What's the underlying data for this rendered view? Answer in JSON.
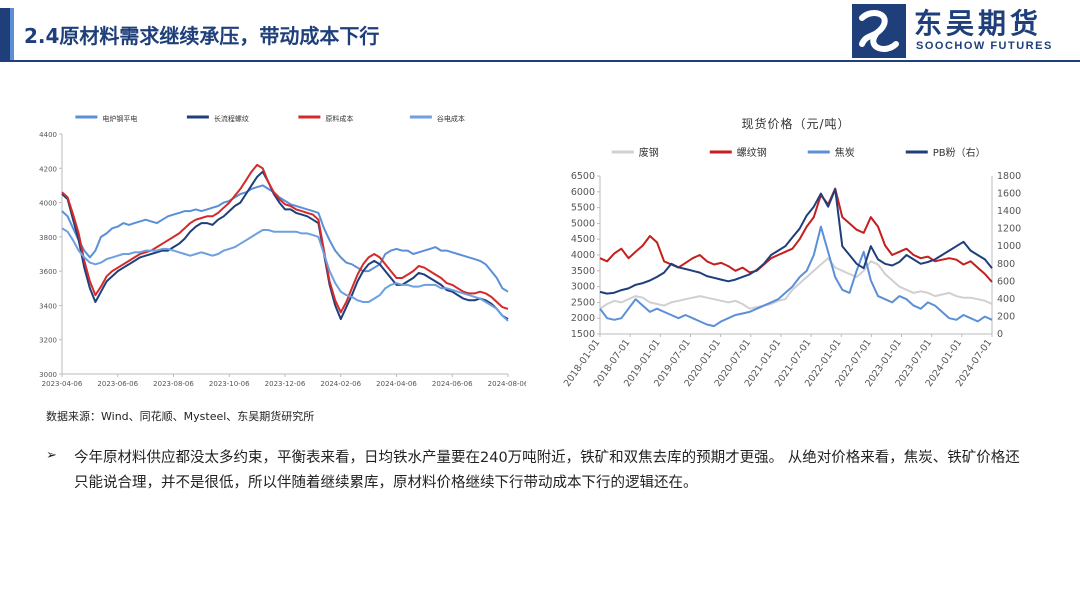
{
  "header": {
    "title": "2.4原材料需求继续承压，带动成本下行",
    "logo_cn": "东吴期货",
    "logo_en": "SOOCHOW FUTURES"
  },
  "source_note": "数据来源：Wind、同花顺、Mysteel、东吴期货研究所",
  "bullet": {
    "mark": "➢",
    "text": "今年原材料供应都没太多约束，平衡表来看，日均铁水产量要在240万吨附近，铁矿和双焦去库的预期才更强。 从绝对价格来看，焦炭、铁矿价格还只能说合理，并不是很低，所以伴随着继续累库，原材料价格继续下行带动成本下行的逻辑还在。"
  },
  "colors": {
    "brand": "#1f3f7a",
    "accent": "#5c8fd6"
  },
  "chart_data": [
    {
      "type": "line",
      "title": "",
      "xlabel": "",
      "ylabel": "",
      "ylim": [
        3000,
        4400
      ],
      "yticks": [
        3000,
        3200,
        3400,
        3600,
        3800,
        4000,
        4200,
        4400
      ],
      "xticks": [
        "2023-04-06",
        "2023-06-06",
        "2023-08-06",
        "2023-10-06",
        "2023-12-06",
        "2024-02-06",
        "2024-04-06",
        "2024-06-06",
        "2024-08-06"
      ],
      "legend": "top",
      "x": [
        0,
        1,
        2,
        3,
        4,
        5,
        6,
        7,
        8,
        9,
        10,
        11,
        12,
        13,
        14,
        15,
        16,
        17,
        18,
        19,
        20,
        21,
        22,
        23,
        24,
        25,
        26,
        27,
        28,
        29,
        30,
        31,
        32,
        33,
        34,
        35,
        36,
        37,
        38,
        39,
        40,
        41,
        42,
        43,
        44,
        45,
        46,
        47,
        48,
        49,
        50,
        51,
        52,
        53,
        54,
        55,
        56,
        57,
        58,
        59,
        60,
        61,
        62,
        63,
        64,
        65,
        66,
        67,
        68,
        69,
        70,
        71,
        72,
        73,
        74,
        75,
        76,
        77,
        78,
        79,
        80
      ],
      "series": [
        {
          "name": "电炉钢平电",
          "color": "#5b8fd8",
          "values": [
            3950,
            3920,
            3850,
            3780,
            3720,
            3680,
            3720,
            3800,
            3820,
            3850,
            3860,
            3880,
            3870,
            3880,
            3890,
            3900,
            3890,
            3880,
            3900,
            3920,
            3930,
            3940,
            3950,
            3950,
            3960,
            3950,
            3960,
            3970,
            3980,
            4000,
            4010,
            4030,
            4050,
            4060,
            4080,
            4090,
            4100,
            4080,
            4060,
            4030,
            4010,
            3990,
            3980,
            3970,
            3960,
            3950,
            3940,
            3850,
            3780,
            3720,
            3680,
            3650,
            3640,
            3620,
            3600,
            3600,
            3620,
            3640,
            3700,
            3720,
            3730,
            3720,
            3720,
            3700,
            3710,
            3720,
            3730,
            3740,
            3720,
            3720,
            3710,
            3700,
            3690,
            3680,
            3670,
            3660,
            3640,
            3600,
            3560,
            3500,
            3480
          ]
        },
        {
          "name": "长流程螺纹",
          "color": "#1f3f7a",
          "values": [
            4050,
            4020,
            3900,
            3780,
            3620,
            3500,
            3420,
            3480,
            3540,
            3570,
            3600,
            3620,
            3640,
            3660,
            3680,
            3690,
            3700,
            3710,
            3720,
            3720,
            3740,
            3760,
            3790,
            3830,
            3860,
            3880,
            3880,
            3870,
            3900,
            3920,
            3950,
            3980,
            4000,
            4050,
            4100,
            4150,
            4180,
            4120,
            4050,
            4000,
            3960,
            3960,
            3940,
            3930,
            3920,
            3900,
            3880,
            3700,
            3520,
            3400,
            3320,
            3390,
            3460,
            3540,
            3600,
            3640,
            3660,
            3640,
            3600,
            3560,
            3520,
            3520,
            3540,
            3560,
            3590,
            3580,
            3560,
            3540,
            3520,
            3490,
            3480,
            3460,
            3440,
            3430,
            3430,
            3440,
            3430,
            3410,
            3380,
            3340,
            3320
          ]
        },
        {
          "name": "原料成本",
          "color": "#d42a2a",
          "values": [
            4060,
            4030,
            3930,
            3820,
            3660,
            3540,
            3460,
            3510,
            3570,
            3600,
            3620,
            3640,
            3660,
            3680,
            3700,
            3710,
            3720,
            3740,
            3760,
            3780,
            3800,
            3820,
            3850,
            3880,
            3900,
            3910,
            3920,
            3920,
            3940,
            3970,
            4000,
            4040,
            4080,
            4130,
            4180,
            4220,
            4200,
            4120,
            4060,
            4020,
            3990,
            3980,
            3960,
            3950,
            3940,
            3930,
            3900,
            3720,
            3540,
            3430,
            3360,
            3420,
            3500,
            3580,
            3640,
            3680,
            3700,
            3680,
            3640,
            3600,
            3560,
            3560,
            3580,
            3600,
            3630,
            3620,
            3600,
            3580,
            3560,
            3530,
            3520,
            3500,
            3480,
            3470,
            3470,
            3480,
            3470,
            3450,
            3420,
            3390,
            3380
          ]
        },
        {
          "name": "谷电成本",
          "color": "#6e9fe0",
          "values": [
            3850,
            3830,
            3780,
            3720,
            3680,
            3650,
            3640,
            3650,
            3670,
            3680,
            3690,
            3700,
            3700,
            3710,
            3710,
            3720,
            3720,
            3720,
            3730,
            3730,
            3720,
            3710,
            3700,
            3690,
            3700,
            3710,
            3700,
            3690,
            3700,
            3720,
            3730,
            3740,
            3760,
            3780,
            3800,
            3820,
            3840,
            3840,
            3830,
            3830,
            3830,
            3830,
            3830,
            3820,
            3820,
            3810,
            3800,
            3700,
            3600,
            3530,
            3480,
            3460,
            3450,
            3430,
            3420,
            3420,
            3440,
            3460,
            3500,
            3520,
            3530,
            3520,
            3520,
            3510,
            3510,
            3520,
            3520,
            3520,
            3500,
            3500,
            3490,
            3480,
            3470,
            3460,
            3450,
            3440,
            3420,
            3400,
            3380,
            3340,
            3310
          ]
        }
      ]
    },
    {
      "type": "line",
      "title": "现货价格（元/吨）",
      "xlabel": "",
      "ylabel": "",
      "ylim": [
        1500,
        6500
      ],
      "yticks": [
        1500,
        2000,
        2500,
        3000,
        3500,
        4000,
        4500,
        5000,
        5500,
        6000,
        6500
      ],
      "y2lim": [
        0,
        1800
      ],
      "y2ticks": [
        0,
        200,
        400,
        600,
        800,
        1000,
        1200,
        1400,
        1600,
        1800
      ],
      "xticks": [
        "2018-01-01",
        "2018-07-01",
        "2019-01-01",
        "2019-07-01",
        "2020-01-01",
        "2020-07-01",
        "2021-01-01",
        "2021-07-01",
        "2022-01-01",
        "2022-07-01",
        "2023-01-01",
        "2023-07-01",
        "2024-01-01",
        "2024-07-01"
      ],
      "legend": "top",
      "x": [
        0,
        1,
        2,
        3,
        4,
        5,
        6,
        7,
        8,
        9,
        10,
        11,
        12,
        13,
        14,
        15,
        16,
        17,
        18,
        19,
        20,
        21,
        22,
        23,
        24,
        25,
        26,
        27,
        28,
        29,
        30,
        31,
        32,
        33,
        34,
        35,
        36,
        37,
        38,
        39,
        40,
        41,
        42,
        43,
        44,
        45,
        46,
        47,
        48,
        49,
        50,
        51,
        52,
        53,
        54,
        55
      ],
      "series": [
        {
          "name": "废钢",
          "color": "#d0d0d0",
          "axis": "left",
          "values": [
            2300,
            2450,
            2550,
            2500,
            2600,
            2700,
            2650,
            2500,
            2450,
            2400,
            2500,
            2550,
            2600,
            2650,
            2700,
            2650,
            2600,
            2550,
            2500,
            2550,
            2450,
            2300,
            2350,
            2400,
            2450,
            2550,
            2600,
            2900,
            3100,
            3300,
            3500,
            3700,
            3900,
            3600,
            3500,
            3400,
            3300,
            3500,
            3800,
            3700,
            3400,
            3200,
            3000,
            2900,
            2800,
            2850,
            2800,
            2700,
            2750,
            2800,
            2700,
            2650,
            2650,
            2600,
            2550,
            2450
          ]
        },
        {
          "name": "螺纹钢",
          "color": "#c41e1e",
          "axis": "left",
          "values": [
            3900,
            3800,
            4050,
            4200,
            3900,
            4100,
            4300,
            4600,
            4400,
            3800,
            3700,
            3600,
            3750,
            3900,
            4000,
            3800,
            3700,
            3750,
            3650,
            3500,
            3600,
            3450,
            3500,
            3700,
            3900,
            4000,
            4100,
            4200,
            4500,
            4900,
            5200,
            5900,
            5600,
            6100,
            5200,
            5000,
            4800,
            4700,
            5200,
            4900,
            4300,
            4000,
            4100,
            4200,
            4000,
            3900,
            3950,
            3800,
            3850,
            3900,
            3850,
            3700,
            3800,
            3600,
            3400,
            3150
          ]
        },
        {
          "name": "焦炭",
          "color": "#5b8fd8",
          "axis": "left",
          "values": [
            2300,
            2000,
            1950,
            2000,
            2300,
            2600,
            2400,
            2200,
            2300,
            2200,
            2100,
            2000,
            2100,
            2000,
            1900,
            1800,
            1750,
            1900,
            2000,
            2100,
            2150,
            2200,
            2300,
            2400,
            2500,
            2600,
            2800,
            3000,
            3300,
            3500,
            4000,
            4900,
            4100,
            3300,
            2900,
            2800,
            3500,
            4100,
            3200,
            2700,
            2600,
            2500,
            2700,
            2600,
            2400,
            2300,
            2500,
            2400,
            2200,
            2000,
            1950,
            2100,
            2000,
            1900,
            2050,
            1950
          ]
        },
        {
          "name": "PB粉（右）",
          "color": "#1f3f7a",
          "axis": "right",
          "values": [
            480,
            460,
            470,
            500,
            520,
            560,
            580,
            610,
            650,
            700,
            800,
            760,
            740,
            720,
            700,
            660,
            640,
            620,
            600,
            620,
            650,
            680,
            730,
            800,
            900,
            950,
            1000,
            1100,
            1200,
            1350,
            1450,
            1600,
            1450,
            1650,
            1000,
            900,
            800,
            750,
            1000,
            850,
            800,
            780,
            820,
            900,
            850,
            800,
            820,
            850,
            900,
            950,
            1000,
            1050,
            950,
            900,
            850,
            750
          ]
        }
      ]
    }
  ]
}
